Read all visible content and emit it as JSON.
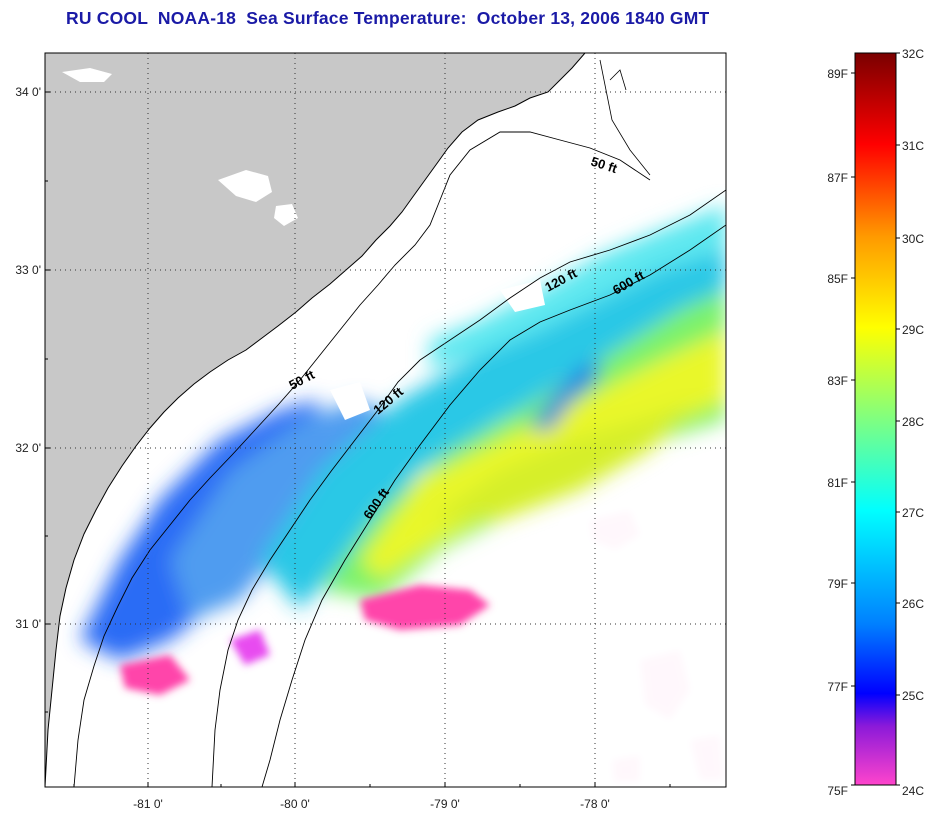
{
  "title": "RU COOL  NOAA-18  Sea Surface Temperature:  October 13, 2006 1840 GMT",
  "map": {
    "lat_ticks": [
      "34 0'",
      "33 0'",
      "32 0'",
      "31 0'"
    ],
    "lon_ticks": [
      "-81 0'",
      "-80 0'",
      "-79 0'",
      "-78 0'"
    ],
    "contours": [
      "50 ft",
      "50 ft",
      "120 ft",
      "120 ft",
      "600 ft",
      "600 ft"
    ],
    "colors": {
      "land": "#c8c8c8",
      "coastline": "#000000",
      "grid": "#333333"
    }
  },
  "colorbar": {
    "celsius_labels": [
      "32C",
      "31C",
      "30C",
      "29C",
      "28C",
      "27C",
      "26C",
      "25C",
      "24C"
    ],
    "fahrenheit_labels": [
      "89F",
      "87F",
      "85F",
      "83F",
      "81F",
      "79F",
      "77F",
      "75F"
    ],
    "gradient": [
      "#ff44cc",
      "#8c1ad9",
      "#0000ff",
      "#0080ff",
      "#00ffff",
      "#80ff80",
      "#ffff00",
      "#ff9900",
      "#ff0000",
      "#7a0000"
    ]
  }
}
